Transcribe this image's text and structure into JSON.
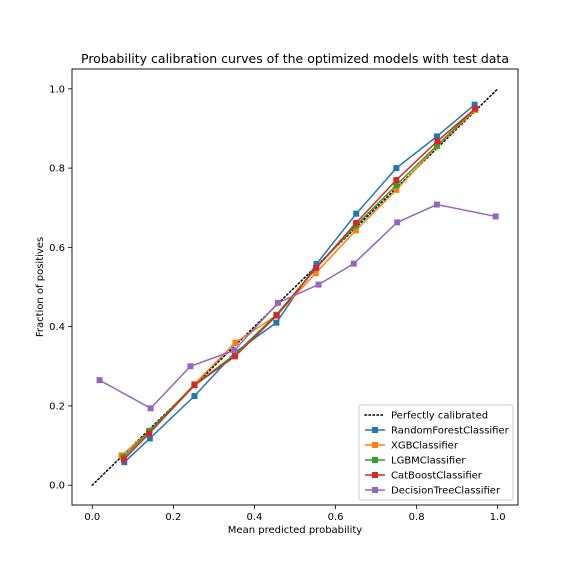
{
  "chart_data": {
    "type": "line",
    "title": "Probability calibration curves of the optimized models with test data",
    "xlabel": "Mean predicted probability",
    "ylabel": "Fraction of positives",
    "xlim": [
      -0.05,
      1.05
    ],
    "ylim": [
      -0.05,
      1.05
    ],
    "xticks": [
      0.0,
      0.2,
      0.4,
      0.6,
      0.8,
      1.0
    ],
    "yticks": [
      0.0,
      0.2,
      0.4,
      0.6,
      0.8,
      1.0
    ],
    "xtick_labels": [
      "0.0",
      "0.2",
      "0.4",
      "0.6",
      "0.8",
      "1.0"
    ],
    "ytick_labels": [
      "0.0",
      "0.2",
      "0.4",
      "0.6",
      "0.8",
      "1.0"
    ],
    "grid": false,
    "legend_position": "bottom-right",
    "reference": {
      "name": "Perfectly calibrated",
      "x": [
        0,
        1
      ],
      "y": [
        0,
        1
      ],
      "color": "#000000",
      "style": "dotted"
    },
    "series": [
      {
        "name": "RandomForestClassifier",
        "color": "#1f77b4",
        "x": [
          0.079,
          0.142,
          0.252,
          0.352,
          0.454,
          0.553,
          0.651,
          0.75,
          0.85,
          0.943
        ],
        "y": [
          0.058,
          0.118,
          0.225,
          0.335,
          0.41,
          0.558,
          0.685,
          0.8,
          0.88,
          0.96
        ]
      },
      {
        "name": "XGBClassifier",
        "color": "#ff7f0e",
        "x": [
          0.072,
          0.14,
          0.252,
          0.353,
          0.454,
          0.551,
          0.65,
          0.75,
          0.85,
          0.945
        ],
        "y": [
          0.075,
          0.135,
          0.255,
          0.36,
          0.428,
          0.535,
          0.643,
          0.745,
          0.855,
          0.947
        ]
      },
      {
        "name": "LGBMClassifier",
        "color": "#2ca02c",
        "x": [
          0.077,
          0.141,
          0.252,
          0.352,
          0.454,
          0.552,
          0.65,
          0.75,
          0.85,
          0.944
        ],
        "y": [
          0.07,
          0.137,
          0.253,
          0.33,
          0.43,
          0.548,
          0.655,
          0.757,
          0.857,
          0.95
        ]
      },
      {
        "name": "CatBoostClassifier",
        "color": "#d62728",
        "x": [
          0.078,
          0.14,
          0.252,
          0.352,
          0.455,
          0.552,
          0.651,
          0.75,
          0.851,
          0.944
        ],
        "y": [
          0.065,
          0.13,
          0.252,
          0.325,
          0.428,
          0.548,
          0.662,
          0.77,
          0.868,
          0.95
        ]
      },
      {
        "name": "DecisionTreeClassifier",
        "color": "#9467bd",
        "x": [
          0.018,
          0.144,
          0.242,
          0.35,
          0.458,
          0.558,
          0.645,
          0.752,
          0.85,
          0.995
        ],
        "y": [
          0.265,
          0.194,
          0.3,
          0.34,
          0.46,
          0.506,
          0.559,
          0.663,
          0.708,
          0.678
        ]
      }
    ]
  }
}
